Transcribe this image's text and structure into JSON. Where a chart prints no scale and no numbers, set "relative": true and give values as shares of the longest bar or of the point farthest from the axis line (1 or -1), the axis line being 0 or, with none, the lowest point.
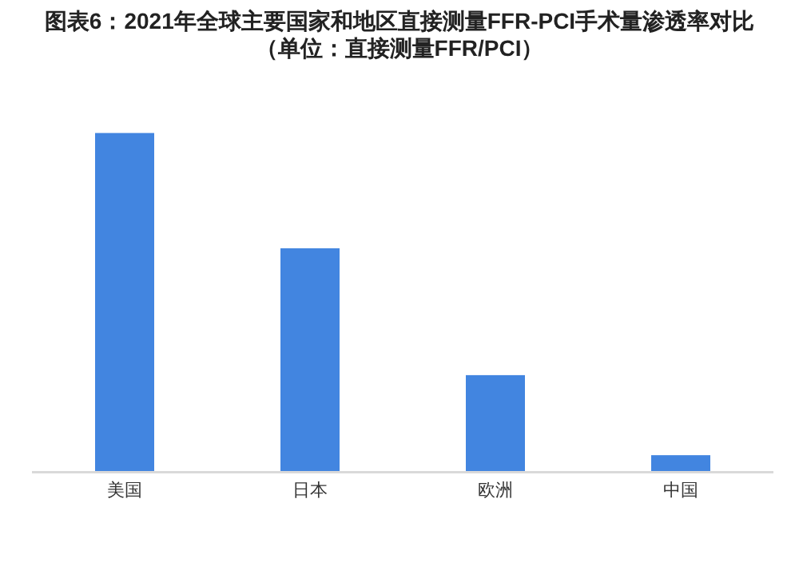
{
  "chart_data": {
    "type": "bar",
    "title": "图表6：2021年全球主要国家和地区直接测量FFR-PCI手术量渗透率对比（单位：直接测量FFR/PCI）",
    "categories": [
      "美国",
      "日本",
      "欧洲",
      "中国"
    ],
    "values": [
      1,
      0.66,
      0.286,
      0.05
    ],
    "color": "#4285e0",
    "relative": true
  }
}
